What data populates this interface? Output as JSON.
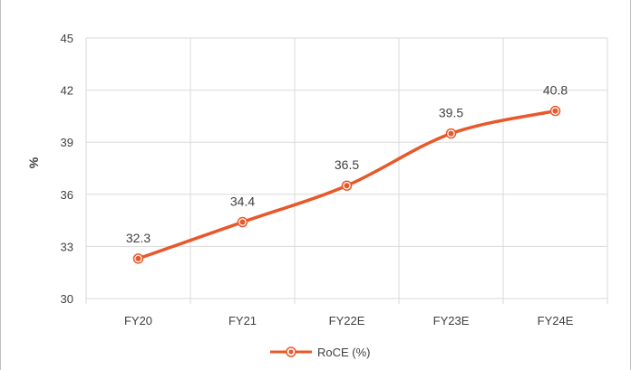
{
  "chart_data": {
    "type": "line",
    "categories": [
      "FY20",
      "FY21",
      "FY22E",
      "FY23E",
      "FY24E"
    ],
    "series": [
      {
        "name": "RoCE (%)",
        "values": [
          32.3,
          34.4,
          36.5,
          39.5,
          40.8
        ],
        "color": "#E8582A"
      }
    ],
    "data_labels": [
      "32.3",
      "34.4",
      "36.5",
      "39.5",
      "40.8"
    ],
    "ylabel": "%",
    "xlabel": "",
    "ylim": [
      30,
      45
    ],
    "yticks": [
      30,
      33,
      36,
      39,
      42,
      45
    ],
    "ytick_labels": [
      "30",
      "33",
      "36",
      "39",
      "42",
      "45"
    ],
    "grid": true,
    "legend_position": "bottom",
    "gridline_color": "#D9D9D9",
    "text_color": "#404040",
    "frame_color": "#BFBFBF"
  }
}
